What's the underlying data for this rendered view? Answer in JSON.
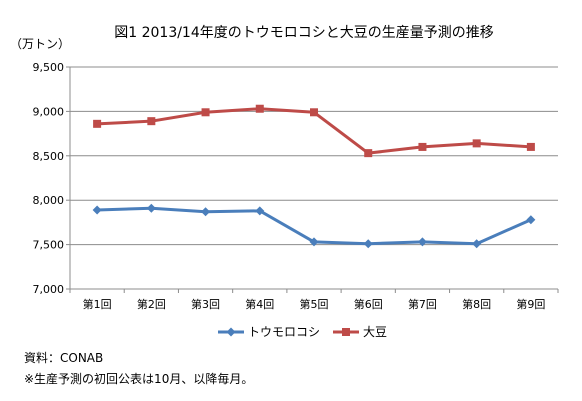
{
  "chart_data": {
    "type": "line",
    "title": "図1 2013/14年度のトウモロコシと大豆の生産量予測の推移",
    "ylabel": "（万トン）",
    "xlabel": "",
    "categories": [
      "第1回",
      "第2回",
      "第3回",
      "第4回",
      "第5回",
      "第6回",
      "第7回",
      "第8回",
      "第9回"
    ],
    "ylim": [
      7000,
      9500
    ],
    "yticks": [
      7000,
      7500,
      8000,
      8500,
      9000,
      9500
    ],
    "ytick_labels": [
      "7,000",
      "7,500",
      "8,000",
      "8,500",
      "9,000",
      "9,500"
    ],
    "grid": true,
    "legend_position": "bottom",
    "series": [
      {
        "name": "トウモロコシ",
        "color": "#4a7ebb",
        "marker": "diamond",
        "values": [
          7890,
          7910,
          7870,
          7880,
          7530,
          7510,
          7530,
          7510,
          7780
        ]
      },
      {
        "name": "大豆",
        "color": "#be4b48",
        "marker": "square",
        "values": [
          8860,
          8890,
          8990,
          9030,
          8990,
          8530,
          8600,
          8640,
          8600
        ]
      }
    ]
  },
  "notes": {
    "source": "資料：CONAB",
    "footnote": "※生産予測の初回公表は10月、以降毎月。"
  }
}
